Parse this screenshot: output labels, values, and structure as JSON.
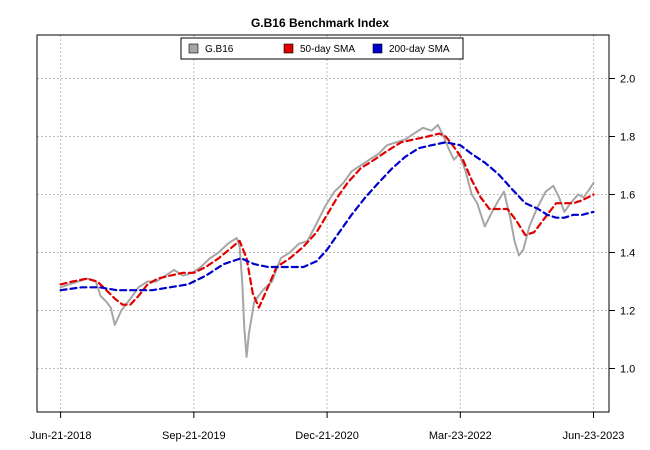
{
  "chart_data": {
    "type": "line",
    "title": "G.B16 Benchmark Index",
    "xlabel": "",
    "ylabel": "",
    "x_tick_labels": [
      "Jun-21-2018",
      "Sep-21-2019",
      "Dec-21-2020",
      "Mar-23-2022",
      "Jun-23-2023"
    ],
    "x_tick_dates": [
      "2018-06-21",
      "2019-09-21",
      "2020-12-21",
      "2022-03-23",
      "2023-06-23"
    ],
    "xlim": [
      "2018-04-01",
      "2023-08-15"
    ],
    "y_tick_labels": [
      "1.0",
      "1.2",
      "1.4",
      "1.6",
      "1.8",
      "2.0"
    ],
    "y_ticks": [
      1.0,
      1.2,
      1.4,
      1.6,
      1.8,
      2.0
    ],
    "ylim": [
      0.85,
      2.15
    ],
    "y_axis_side": "right",
    "grid": true,
    "legend_position": "top-center",
    "series": [
      {
        "name": "G.B16",
        "color": "#a6a6a6",
        "style": "solid",
        "points": [
          [
            "2018-06-21",
            1.28
          ],
          [
            "2018-07-20",
            1.29
          ],
          [
            "2018-08-20",
            1.3
          ],
          [
            "2018-09-20",
            1.31
          ],
          [
            "2018-10-20",
            1.3
          ],
          [
            "2018-11-05",
            1.25
          ],
          [
            "2018-11-25",
            1.23
          ],
          [
            "2018-12-10",
            1.21
          ],
          [
            "2018-12-24",
            1.15
          ],
          [
            "2019-01-15",
            1.2
          ],
          [
            "2019-02-15",
            1.24
          ],
          [
            "2019-03-15",
            1.28
          ],
          [
            "2019-04-15",
            1.3
          ],
          [
            "2019-05-15",
            1.3
          ],
          [
            "2019-06-15",
            1.32
          ],
          [
            "2019-07-15",
            1.34
          ],
          [
            "2019-08-15",
            1.32
          ],
          [
            "2019-09-15",
            1.33
          ],
          [
            "2019-10-15",
            1.35
          ],
          [
            "2019-11-15",
            1.38
          ],
          [
            "2019-12-15",
            1.4
          ],
          [
            "2020-01-15",
            1.43
          ],
          [
            "2020-02-15",
            1.45
          ],
          [
            "2020-02-25",
            1.42
          ],
          [
            "2020-03-05",
            1.3
          ],
          [
            "2020-03-12",
            1.14
          ],
          [
            "2020-03-20",
            1.04
          ],
          [
            "2020-03-28",
            1.12
          ],
          [
            "2020-04-15",
            1.23
          ],
          [
            "2020-05-15",
            1.27
          ],
          [
            "2020-06-15",
            1.3
          ],
          [
            "2020-07-15",
            1.38
          ],
          [
            "2020-08-15",
            1.4
          ],
          [
            "2020-09-15",
            1.43
          ],
          [
            "2020-10-15",
            1.44
          ],
          [
            "2020-11-15",
            1.5
          ],
          [
            "2020-12-15",
            1.56
          ],
          [
            "2021-01-15",
            1.61
          ],
          [
            "2021-02-15",
            1.64
          ],
          [
            "2021-03-15",
            1.68
          ],
          [
            "2021-04-15",
            1.7
          ],
          [
            "2021-05-15",
            1.72
          ],
          [
            "2021-06-15",
            1.74
          ],
          [
            "2021-07-15",
            1.77
          ],
          [
            "2021-08-15",
            1.78
          ],
          [
            "2021-09-15",
            1.79
          ],
          [
            "2021-10-15",
            1.81
          ],
          [
            "2021-11-15",
            1.83
          ],
          [
            "2021-12-15",
            1.82
          ],
          [
            "2022-01-05",
            1.84
          ],
          [
            "2022-01-25",
            1.8
          ],
          [
            "2022-02-10",
            1.76
          ],
          [
            "2022-03-01",
            1.72
          ],
          [
            "2022-03-20",
            1.74
          ],
          [
            "2022-04-10",
            1.68
          ],
          [
            "2022-05-01",
            1.6
          ],
          [
            "2022-05-20",
            1.57
          ],
          [
            "2022-06-15",
            1.49
          ],
          [
            "2022-07-10",
            1.54
          ],
          [
            "2022-08-01",
            1.58
          ],
          [
            "2022-08-20",
            1.61
          ],
          [
            "2022-09-10",
            1.52
          ],
          [
            "2022-09-25",
            1.44
          ],
          [
            "2022-10-10",
            1.39
          ],
          [
            "2022-10-25",
            1.41
          ],
          [
            "2022-11-15",
            1.49
          ],
          [
            "2022-12-10",
            1.55
          ],
          [
            "2023-01-10",
            1.61
          ],
          [
            "2023-02-05",
            1.63
          ],
          [
            "2023-02-25",
            1.59
          ],
          [
            "2023-03-15",
            1.54
          ],
          [
            "2023-04-05",
            1.57
          ],
          [
            "2023-05-01",
            1.6
          ],
          [
            "2023-05-20",
            1.59
          ],
          [
            "2023-06-10",
            1.62
          ],
          [
            "2023-06-23",
            1.64
          ]
        ]
      },
      {
        "name": "50-day SMA",
        "color": "#e00000",
        "style": "dashed",
        "points": [
          [
            "2018-06-21",
            1.29
          ],
          [
            "2018-08-01",
            1.3
          ],
          [
            "2018-09-20",
            1.31
          ],
          [
            "2018-10-25",
            1.3
          ],
          [
            "2018-11-25",
            1.27
          ],
          [
            "2018-12-25",
            1.24
          ],
          [
            "2019-01-20",
            1.22
          ],
          [
            "2019-02-15",
            1.22
          ],
          [
            "2019-03-15",
            1.25
          ],
          [
            "2019-04-15",
            1.29
          ],
          [
            "2019-05-20",
            1.31
          ],
          [
            "2019-07-01",
            1.32
          ],
          [
            "2019-08-15",
            1.33
          ],
          [
            "2019-09-21",
            1.33
          ],
          [
            "2019-11-01",
            1.35
          ],
          [
            "2019-12-15",
            1.38
          ],
          [
            "2020-01-20",
            1.41
          ],
          [
            "2020-02-25",
            1.44
          ],
          [
            "2020-03-20",
            1.38
          ],
          [
            "2020-04-10",
            1.26
          ],
          [
            "2020-05-01",
            1.21
          ],
          [
            "2020-06-01",
            1.28
          ],
          [
            "2020-07-01",
            1.35
          ],
          [
            "2020-08-15",
            1.38
          ],
          [
            "2020-10-01",
            1.42
          ],
          [
            "2020-11-15",
            1.47
          ],
          [
            "2020-12-21",
            1.53
          ],
          [
            "2021-01-25",
            1.59
          ],
          [
            "2021-03-01",
            1.64
          ],
          [
            "2021-04-15",
            1.69
          ],
          [
            "2021-06-01",
            1.72
          ],
          [
            "2021-07-15",
            1.75
          ],
          [
            "2021-09-01",
            1.78
          ],
          [
            "2021-10-15",
            1.79
          ],
          [
            "2021-12-01",
            1.8
          ],
          [
            "2022-01-10",
            1.81
          ],
          [
            "2022-02-01",
            1.8
          ],
          [
            "2022-02-25",
            1.77
          ],
          [
            "2022-04-01",
            1.72
          ],
          [
            "2022-05-01",
            1.65
          ],
          [
            "2022-06-01",
            1.59
          ],
          [
            "2022-07-01",
            1.55
          ],
          [
            "2022-08-01",
            1.55
          ],
          [
            "2022-09-01",
            1.55
          ],
          [
            "2022-10-01",
            1.51
          ],
          [
            "2022-11-01",
            1.46
          ],
          [
            "2022-12-01",
            1.47
          ],
          [
            "2023-01-15",
            1.53
          ],
          [
            "2023-02-15",
            1.57
          ],
          [
            "2023-03-15",
            1.57
          ],
          [
            "2023-04-15",
            1.57
          ],
          [
            "2023-05-15",
            1.58
          ],
          [
            "2023-06-23",
            1.6
          ]
        ]
      },
      {
        "name": "200-day SMA",
        "color": "#0000cc",
        "style": "dashed",
        "points": [
          [
            "2018-06-21",
            1.27
          ],
          [
            "2018-09-01",
            1.28
          ],
          [
            "2018-11-01",
            1.28
          ],
          [
            "2019-01-01",
            1.27
          ],
          [
            "2019-03-01",
            1.27
          ],
          [
            "2019-05-01",
            1.27
          ],
          [
            "2019-07-01",
            1.28
          ],
          [
            "2019-09-01",
            1.29
          ],
          [
            "2019-11-01",
            1.32
          ],
          [
            "2020-01-01",
            1.36
          ],
          [
            "2020-03-01",
            1.38
          ],
          [
            "2020-04-15",
            1.36
          ],
          [
            "2020-06-01",
            1.35
          ],
          [
            "2020-08-01",
            1.35
          ],
          [
            "2020-10-01",
            1.35
          ],
          [
            "2020-11-15",
            1.37
          ],
          [
            "2020-12-21",
            1.41
          ],
          [
            "2021-02-01",
            1.47
          ],
          [
            "2021-03-15",
            1.53
          ],
          [
            "2021-05-01",
            1.59
          ],
          [
            "2021-06-15",
            1.64
          ],
          [
            "2021-08-01",
            1.69
          ],
          [
            "2021-09-15",
            1.73
          ],
          [
            "2021-11-01",
            1.76
          ],
          [
            "2021-12-15",
            1.77
          ],
          [
            "2022-02-01",
            1.78
          ],
          [
            "2022-03-23",
            1.77
          ],
          [
            "2022-05-01",
            1.74
          ],
          [
            "2022-06-15",
            1.71
          ],
          [
            "2022-08-01",
            1.67
          ],
          [
            "2022-09-15",
            1.62
          ],
          [
            "2022-11-01",
            1.57
          ],
          [
            "2022-12-15",
            1.55
          ],
          [
            "2023-01-15",
            1.53
          ],
          [
            "2023-02-15",
            1.52
          ],
          [
            "2023-03-15",
            1.52
          ],
          [
            "2023-04-15",
            1.53
          ],
          [
            "2023-05-15",
            1.53
          ],
          [
            "2023-06-23",
            1.54
          ]
        ]
      }
    ]
  }
}
